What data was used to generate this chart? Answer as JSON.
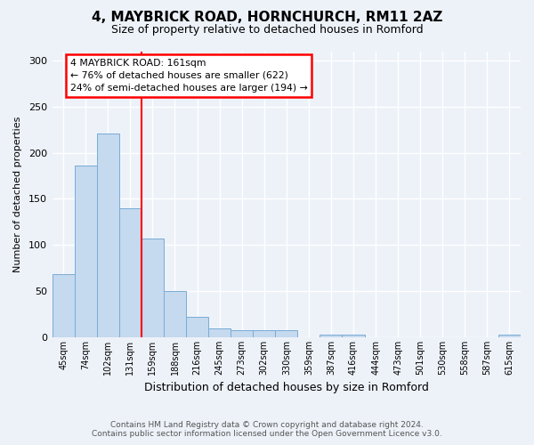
{
  "title": "4, MAYBRICK ROAD, HORNCHURCH, RM11 2AZ",
  "subtitle": "Size of property relative to detached houses in Romford",
  "xlabel": "Distribution of detached houses by size in Romford",
  "ylabel": "Number of detached properties",
  "bin_labels": [
    "45sqm",
    "74sqm",
    "102sqm",
    "131sqm",
    "159sqm",
    "188sqm",
    "216sqm",
    "245sqm",
    "273sqm",
    "302sqm",
    "330sqm",
    "359sqm",
    "387sqm",
    "416sqm",
    "444sqm",
    "473sqm",
    "501sqm",
    "530sqm",
    "558sqm",
    "587sqm",
    "615sqm"
  ],
  "bar_values": [
    68,
    186,
    221,
    140,
    107,
    50,
    22,
    10,
    8,
    8,
    8,
    0,
    3,
    3,
    0,
    0,
    0,
    0,
    0,
    0,
    3
  ],
  "bar_color": "#c5d9ef",
  "bar_edge_color": "#7aacd4",
  "subject_bin_idx": 4,
  "annotation_line1": "4 MAYBRICK ROAD: 161sqm",
  "annotation_line2": "← 76% of detached houses are smaller (622)",
  "annotation_line3": "24% of semi-detached houses are larger (194) →",
  "ylim_max": 310,
  "yticks": [
    0,
    50,
    100,
    150,
    200,
    250,
    300
  ],
  "footer_line1": "Contains HM Land Registry data © Crown copyright and database right 2024.",
  "footer_line2": "Contains public sector information licensed under the Open Government Licence v3.0.",
  "bg_color": "#edf2f9",
  "plot_bg_color": "#edf2f9",
  "grid_color": "#ffffff",
  "title_fontsize": 11,
  "subtitle_fontsize": 9,
  "ylabel_fontsize": 8,
  "xlabel_fontsize": 9
}
